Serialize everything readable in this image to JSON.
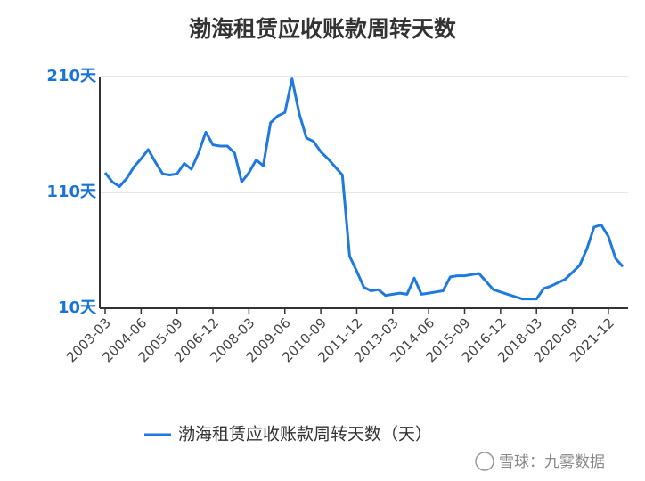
{
  "chart_data": {
    "type": "line",
    "title": "渤海租赁应收账款周转天数",
    "categories": [
      "2003-03",
      null,
      null,
      null,
      null,
      "2004-06",
      null,
      null,
      null,
      null,
      "2005-09",
      null,
      null,
      null,
      null,
      "2006-12",
      null,
      null,
      null,
      null,
      "2008-03",
      null,
      null,
      null,
      null,
      "2009-06",
      null,
      null,
      null,
      null,
      "2010-09",
      null,
      null,
      null,
      null,
      "2011-12",
      null,
      null,
      null,
      null,
      "2013-03",
      null,
      null,
      null,
      null,
      "2014-06",
      null,
      null,
      null,
      null,
      "2015-09",
      null,
      null,
      null,
      null,
      "2016-12",
      null,
      null,
      null,
      null,
      "2018-03",
      null,
      null,
      null,
      null,
      "2020-09",
      null,
      null,
      null,
      null,
      "2021-12",
      null,
      null
    ],
    "series": [
      {
        "name": "渤海租赁应收账款周转天数（天）",
        "color": "#1f7ae0",
        "values": [
          127,
          119,
          115,
          122,
          132,
          139,
          147,
          136,
          126,
          125,
          126,
          135,
          130,
          144,
          162,
          151,
          150,
          150,
          144,
          119,
          127,
          138,
          133,
          170,
          176,
          179,
          208,
          178,
          157,
          154,
          145,
          139,
          132,
          125,
          55,
          42,
          28,
          25,
          26,
          21,
          22,
          23,
          22,
          36,
          22,
          23,
          24,
          25,
          37,
          38,
          38,
          39,
          40,
          33,
          26,
          24,
          22,
          20,
          18,
          18,
          18,
          27,
          29,
          32,
          35,
          41,
          47,
          61,
          80,
          82,
          72,
          53,
          46
        ]
      }
    ],
    "ylim": [
      10,
      210
    ],
    "yticks": [
      {
        "value": 10,
        "label": "10天"
      },
      {
        "value": 110,
        "label": "110天"
      },
      {
        "value": 210,
        "label": "210天"
      }
    ],
    "grid": true,
    "legend": "bottom",
    "watermark": "雪球：九雾数据"
  }
}
